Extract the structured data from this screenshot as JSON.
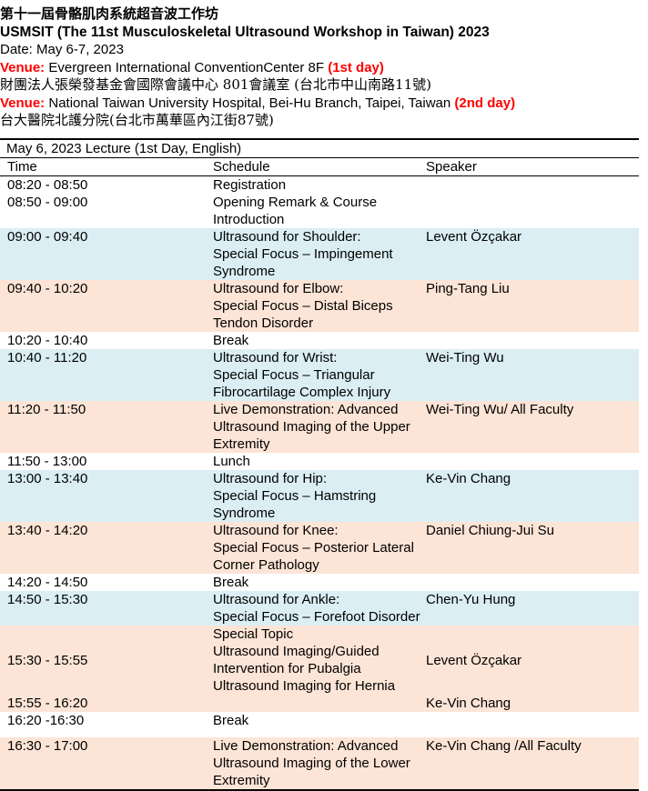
{
  "header": {
    "title_cn": "第十一屆骨骼肌肉系統超音波工作坊",
    "title_en": "USMSIT (The 11st Musculoskeletal Ultrasound Workshop in Taiwan) 2023",
    "date": "Date: May 6-7, 2023",
    "venue_label": "Venue:",
    "venue1": " Evergreen International ConventionCenter 8F ",
    "venue1_tag": "(1st day)",
    "venue1_cn": "財團法人張榮發基金會國際會議中心 801會議室 (台北市中山南路11號)",
    "venue2": " National Taiwan University Hospital, Bei-Hu Branch, Taipei, Taiwan ",
    "venue2_tag": "(2nd day)",
    "venue2_cn": "台大醫院北護分院(台北市萬華區內江街87號)"
  },
  "colors": {
    "blue": "#daeef3",
    "peach": "#fce4d6",
    "venue": "#ff0000"
  },
  "table": {
    "caption": "May 6, 2023 Lecture (1st Day, English)",
    "columns": [
      "Time",
      "Schedule",
      "Speaker"
    ],
    "rows": [
      {
        "time": "08:20 - 08:50",
        "schedule": [
          "Registration"
        ],
        "speaker": "",
        "color": "white"
      },
      {
        "time": "08:50 - 09:00",
        "schedule": [
          "Opening Remark & Course Introduction"
        ],
        "speaker": "",
        "color": "white"
      },
      {
        "time": "09:00 - 09:40",
        "schedule": [
          "Ultrasound for Shoulder:",
          "Special Focus – Impingement Syndrome"
        ],
        "speaker": "Levent Özçakar",
        "color": "blue"
      },
      {
        "time": "09:40 - 10:20",
        "schedule": [
          "Ultrasound for Elbow:",
          "Special Focus – Distal Biceps Tendon Disorder"
        ],
        "speaker": "Ping-Tang Liu",
        "color": "peach"
      },
      {
        "time": "10:20 - 10:40",
        "schedule": [
          "Break"
        ],
        "speaker": "",
        "color": "white"
      },
      {
        "time": "10:40 - 11:20",
        "schedule": [
          "Ultrasound for Wrist:",
          "Special Focus – Triangular Fibrocartilage Complex Injury"
        ],
        "speaker": "Wei-Ting Wu",
        "color": "blue"
      },
      {
        "time": "11:20 - 11:50",
        "schedule": [
          "Live Demonstration: Advanced Ultrasound Imaging of the Upper Extremity"
        ],
        "speaker": "Wei-Ting Wu/ All Faculty",
        "color": "peach"
      },
      {
        "time": "11:50 - 13:00",
        "schedule": [
          "Lunch"
        ],
        "speaker": "",
        "color": "white"
      },
      {
        "time": "13:00 - 13:40",
        "schedule": [
          "Ultrasound for Hip:",
          "Special Focus – Hamstring Syndrome"
        ],
        "speaker": "Ke-Vin Chang",
        "color": "blue"
      },
      {
        "time": "13:40 - 14:20",
        "schedule": [
          "Ultrasound for Knee:",
          "Special Focus – Posterior Lateral Corner Pathology"
        ],
        "speaker": "Daniel Chiung-Jui Su",
        "color": "peach"
      },
      {
        "time": "14:20 - 14:50",
        "schedule": [
          "Break"
        ],
        "speaker": "",
        "color": "white"
      },
      {
        "time": "14:50 - 15:30",
        "schedule": [
          "Ultrasound for Ankle:",
          "Special Focus – Forefoot Disorder"
        ],
        "speaker": "Chen-Yu Hung",
        "color": "blue"
      },
      {
        "time": "15:30 - 15:55",
        "schedule": [
          "Special Topic",
          "Ultrasound Imaging/Guided Intervention for Pubalgia",
          "Ultrasound Imaging for Hernia"
        ],
        "speaker": "Levent Özçakar",
        "color": "peach",
        "middle": true
      },
      {
        "time": "15:55 - 16:20",
        "schedule": [
          ""
        ],
        "speaker": "Ke-Vin Chang",
        "color": "peach"
      },
      {
        "time": "16:20 -16:30",
        "schedule": [
          "Break"
        ],
        "speaker": "",
        "color": "white",
        "tall": true
      },
      {
        "time": "16:30 - 17:00",
        "schedule": [
          "Live Demonstration: Advanced Ultrasound Imaging of the Lower Extremity"
        ],
        "speaker": "Ke-Vin Chang /All Faculty",
        "color": "peach"
      }
    ]
  }
}
